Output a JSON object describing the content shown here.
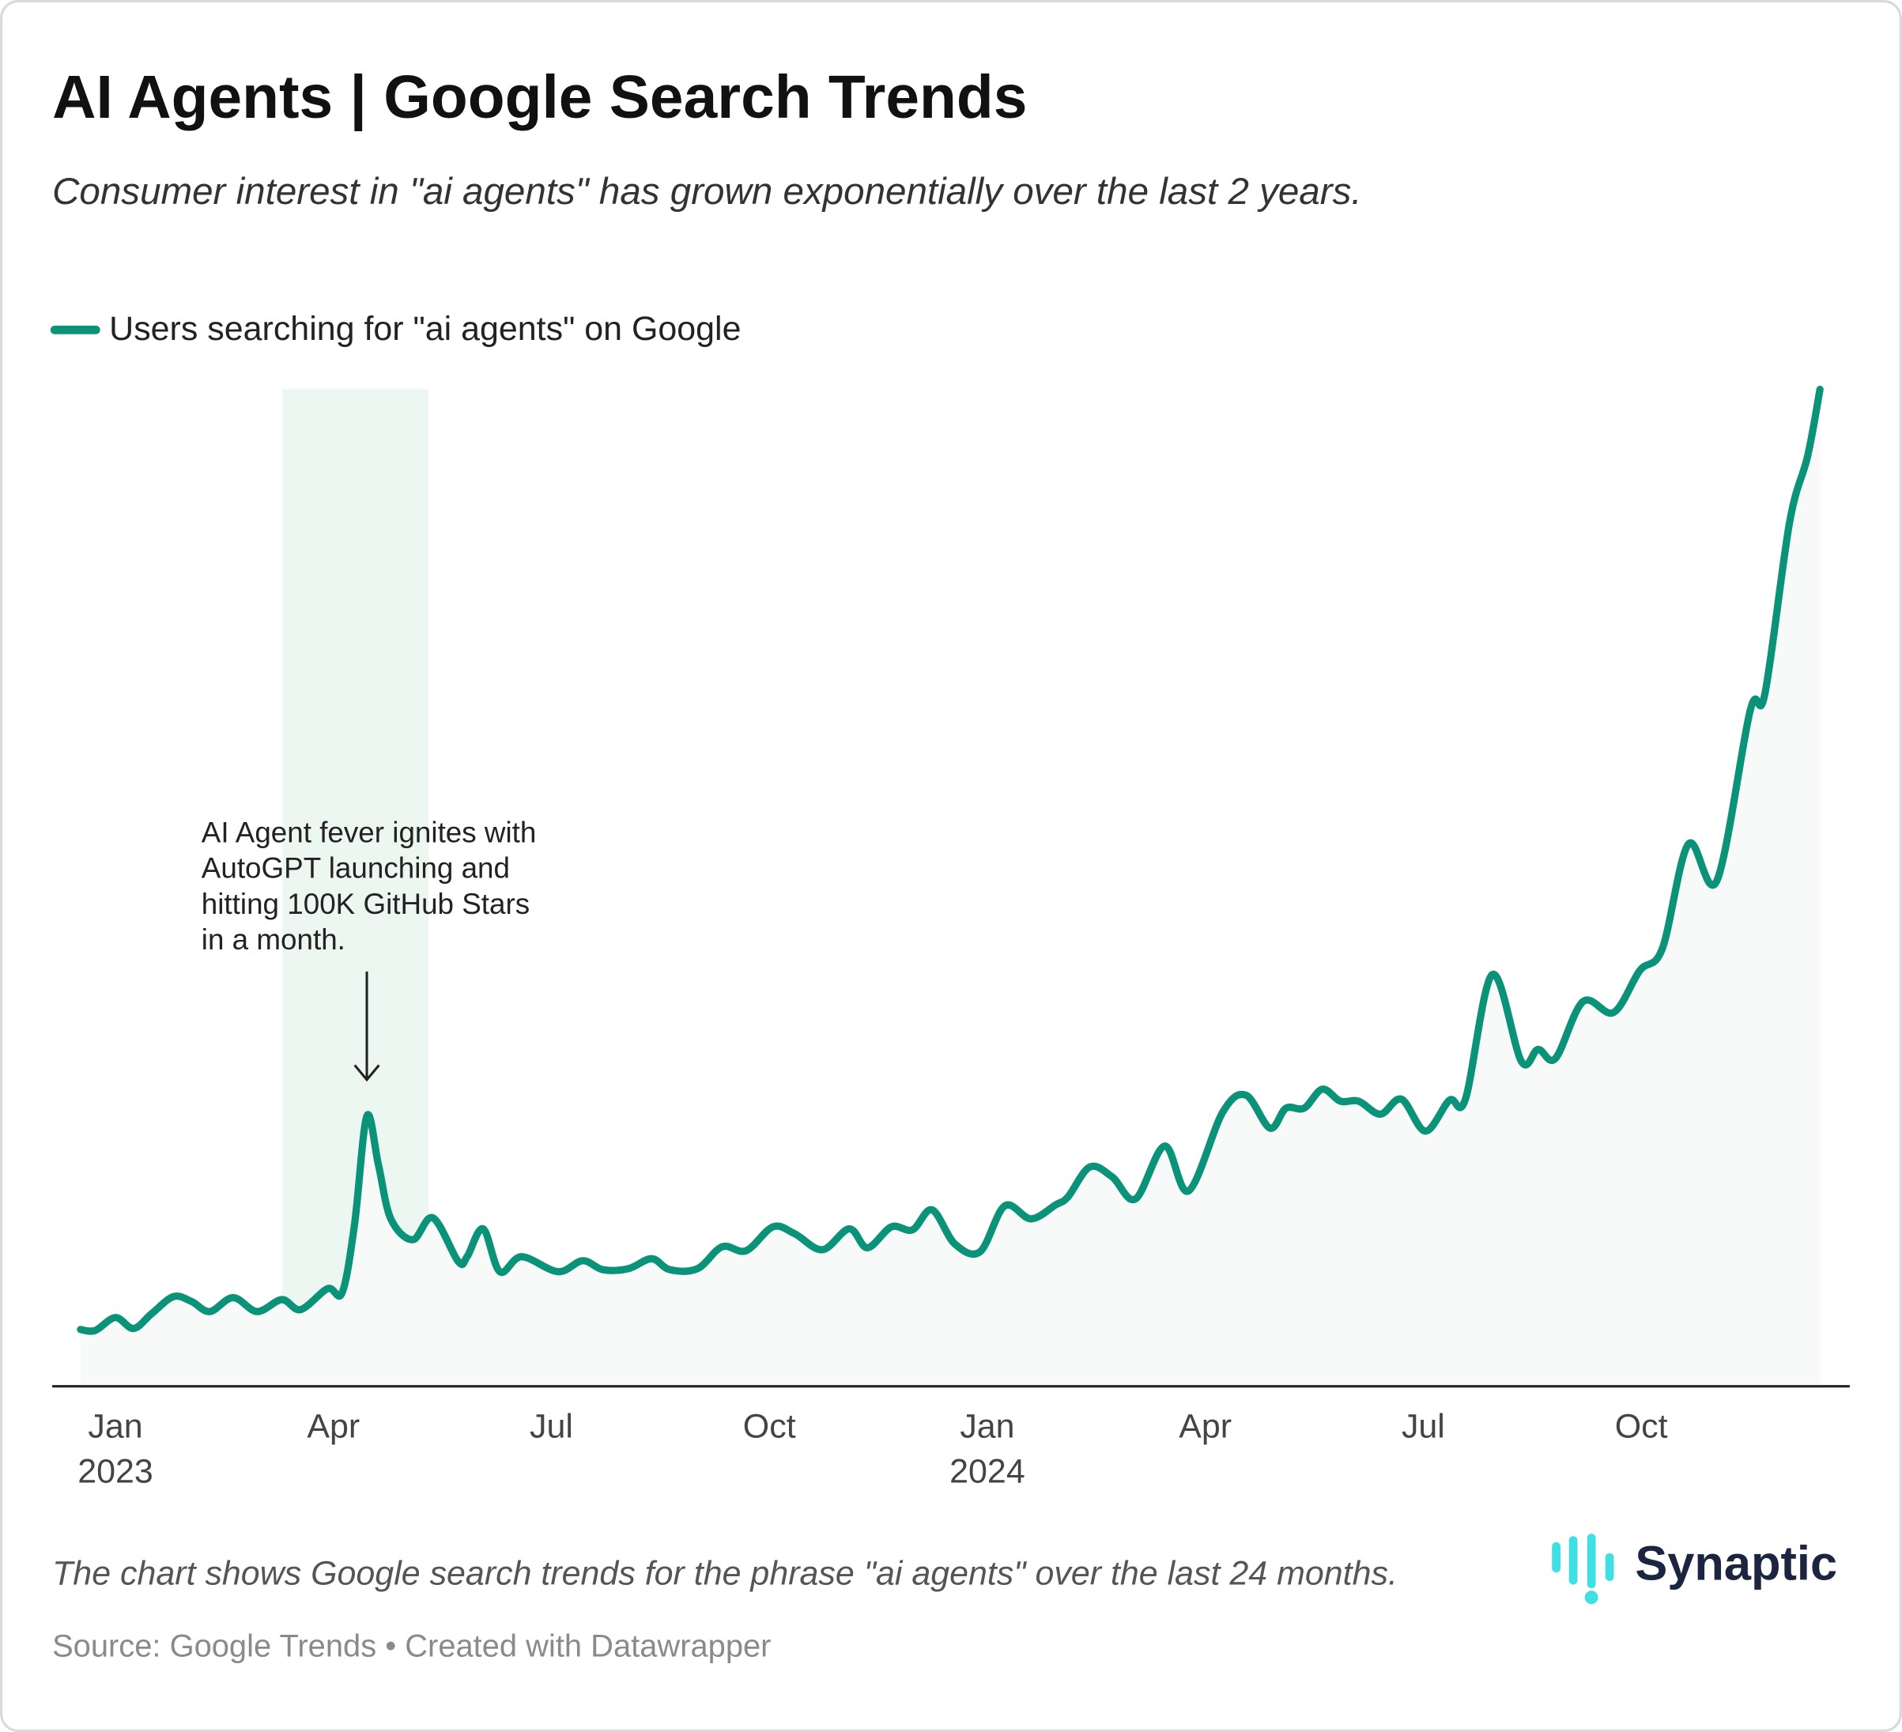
{
  "chart_data": {
    "type": "line",
    "title": "AI Agents | Google Search Trends",
    "subtitle": "Consumer interest in \"ai agents\" has grown exponentially over the last 2 years.",
    "annotation": [
      "AI Agent fever ignites with",
      "AutoGPT launching and",
      "hitting 100K GitHub Stars",
      "in a month."
    ],
    "highlight": [
      2.3,
      4.31
    ],
    "note": "The chart shows Google search trends for the phrase \"ai agents\" over the last 24 months.",
    "source": "Source: Google Trends • Created with Datawrapper",
    "brand": "Synaptic",
    "xlim": [
      -0.87,
      23.87
    ],
    "xticks": [
      {
        "value": 0,
        "label": "Jan",
        "year": "2023"
      },
      {
        "value": 3,
        "label": "Apr"
      },
      {
        "value": 6,
        "label": "Jul"
      },
      {
        "value": 9,
        "label": "Oct"
      },
      {
        "value": 12,
        "label": "Jan",
        "year": "2024"
      },
      {
        "value": 15,
        "label": "Apr"
      },
      {
        "value": 18,
        "label": "Jul"
      },
      {
        "value": 21,
        "label": "Oct"
      }
    ],
    "ylim": [
      0,
      100
    ],
    "x": [
      -0.48,
      -0.28,
      0,
      0.25,
      0.5,
      0.8,
      1.05,
      1.3,
      1.62,
      1.95,
      2.29,
      2.55,
      2.92,
      3.12,
      3.29,
      3.46,
      3.62,
      3.79,
      4.09,
      4.37,
      4.72,
      4.84,
      5.06,
      5.29,
      5.59,
      6.09,
      6.43,
      6.71,
      7.06,
      7.38,
      7.63,
      8.01,
      8.35,
      8.68,
      9.05,
      9.35,
      9.73,
      10.1,
      10.35,
      10.68,
      10.97,
      11.24,
      11.55,
      11.9,
      12.24,
      12.6,
      12.94,
      13.11,
      13.41,
      13.72,
      14.04,
      14.44,
      14.77,
      15.24,
      15.56,
      15.89,
      16.11,
      16.36,
      16.61,
      16.86,
      17.11,
      17.41,
      17.7,
      18.03,
      18.36,
      18.58,
      18.95,
      19.35,
      19.58,
      19.82,
      20.2,
      20.62,
      20.98,
      21.29,
      21.65,
      22.04,
      22.5,
      22.7,
      23.04,
      23.29,
      23.46
    ],
    "series": [
      {
        "name": "Users searching for \"ai agents\" on Google",
        "color": "#0b9379",
        "values": [
          5.7,
          5.6,
          6.9,
          5.8,
          7.3,
          9.0,
          8.5,
          7.5,
          8.9,
          7.5,
          8.7,
          7.7,
          9.8,
          9.4,
          16.2,
          27.1,
          22.2,
          16.8,
          14.7,
          16.9,
          12.5,
          13.0,
          15.8,
          11.5,
          13.0,
          11.5,
          12.6,
          11.7,
          11.8,
          12.8,
          11.7,
          11.8,
          14.0,
          13.6,
          16.0,
          15.3,
          13.7,
          15.8,
          13.9,
          16.0,
          15.7,
          17.7,
          14.3,
          13.5,
          18.1,
          16.8,
          18.2,
          19.0,
          22.0,
          21.0,
          18.8,
          24.1,
          19.6,
          27.5,
          29.2,
          25.9,
          27.9,
          27.9,
          29.8,
          28.6,
          28.6,
          27.3,
          28.8,
          25.6,
          28.7,
          28.8,
          41.3,
          32.6,
          33.8,
          32.9,
          38.6,
          37.5,
          41.7,
          43.9,
          54.4,
          50.7,
          67.8,
          69.4,
          86.6,
          93.3,
          100
        ]
      }
    ]
  }
}
